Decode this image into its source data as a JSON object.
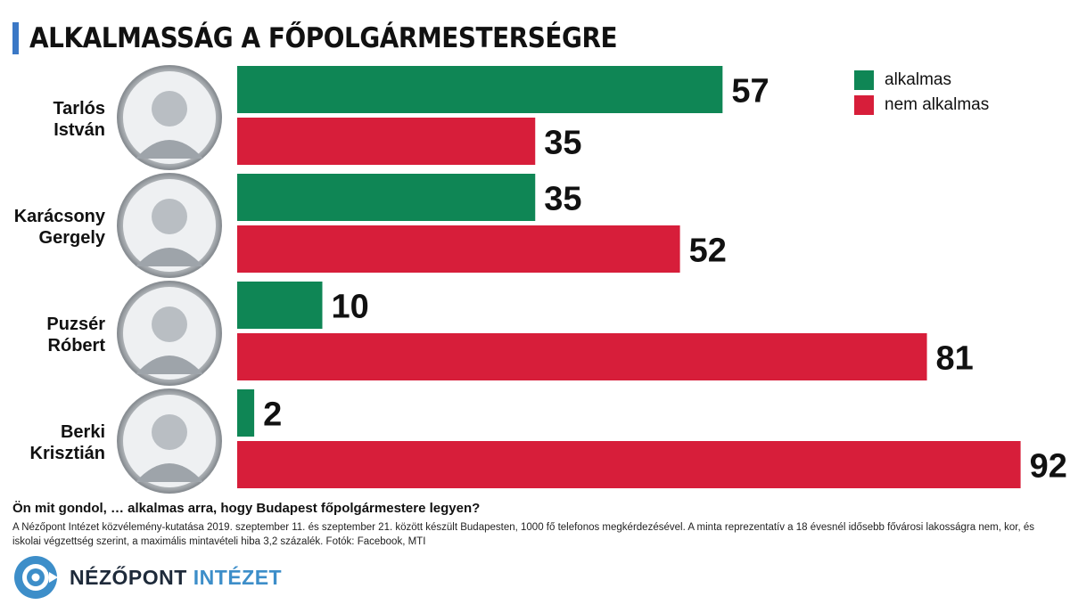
{
  "chart_data": {
    "type": "bar",
    "orientation": "horizontal",
    "title": "ALKALMASSÁG A FŐPOLGÁRMESTERSÉGRE",
    "categories": [
      {
        "first": "Tarlós",
        "last": "István"
      },
      {
        "first": "Karácsony",
        "last": "Gergely"
      },
      {
        "first": "Puzsér",
        "last": "Róbert"
      },
      {
        "first": "Berki",
        "last": "Krisztián"
      }
    ],
    "series": [
      {
        "name": "alkalmas",
        "color": "#0f8655",
        "values": [
          57,
          35,
          10,
          2
        ]
      },
      {
        "name": "nem alkalmas",
        "color": "#d71e3a",
        "values": [
          35,
          52,
          81,
          92
        ]
      }
    ],
    "xlim": [
      0,
      100
    ],
    "legend_position": "top-right"
  },
  "question": "Ön mit gondol, … alkalmas arra, hogy Budapest főpolgármestere legyen?",
  "methodology": "A Nézőpont Intézet közvélemény-kutatása 2019. szeptember 11. és szeptember 21. között készült Budapesten, 1000 fő telefonos megkérdezésével. A minta reprezentatív a 18 évesnél idősebb fővárosi lakosságra nem, kor, és iskolai végzettség szerint, a maximális mintavételi hiba 3,2 százalék. Fotók: Facebook, MTI",
  "logo": {
    "part1": "NÉZŐPONT",
    "part2": "INTÉZET"
  }
}
